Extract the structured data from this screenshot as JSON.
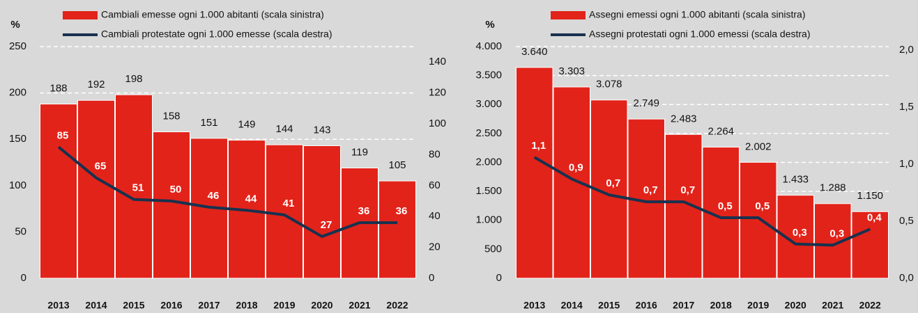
{
  "chart_data": [
    {
      "type": "bar",
      "y_label": "%",
      "categories": [
        "2013",
        "2014",
        "2015",
        "2016",
        "2017",
        "2018",
        "2019",
        "2020",
        "2021",
        "2022"
      ],
      "series": [
        {
          "name": "Cambiali emesse ogni 1.000 abitanti (scala sinistra)",
          "type": "bar",
          "color": "#e2231a",
          "values": [
            188,
            192,
            198,
            158,
            151,
            149,
            144,
            143,
            119,
            105
          ]
        },
        {
          "name": "Cambiali protestate ogni 1.000 emesse (scala destra)",
          "type": "line",
          "axis": "y2",
          "color": "#17324f",
          "values": [
            85,
            65,
            51,
            50,
            46,
            44,
            41,
            27,
            36,
            36
          ]
        }
      ],
      "ylim": [
        0,
        250
      ],
      "yticks": [
        0,
        50,
        100,
        150,
        200,
        250
      ],
      "y2lim": [
        0,
        150
      ],
      "y2ticks": [
        0,
        20,
        40,
        60,
        80,
        100,
        120,
        140
      ],
      "grid": true
    },
    {
      "type": "bar",
      "y_label": "%",
      "categories": [
        "2013",
        "2014",
        "2015",
        "2016",
        "2017",
        "2018",
        "2019",
        "2020",
        "2021",
        "2022"
      ],
      "series": [
        {
          "name": "Assegni emessi ogni 1.000 abitanti (scala sinistra)",
          "type": "bar",
          "color": "#e2231a",
          "values": [
            3640,
            3303,
            3078,
            2749,
            2483,
            2264,
            2002,
            1433,
            1288,
            1150
          ],
          "value_labels": [
            "3.640",
            "3.303",
            "3.078",
            "2.749",
            "2.483",
            "2.264",
            "2.002",
            "1.433",
            "1.288",
            "1.150"
          ]
        },
        {
          "name": "Assegni protestati ogni 1.000 emessi (scala destra)",
          "type": "line",
          "axis": "y2",
          "color": "#17324f",
          "values": [
            1.06,
            0.87,
            0.73,
            0.67,
            0.67,
            0.53,
            0.53,
            0.3,
            0.29,
            0.43
          ],
          "value_labels": [
            "1,1",
            "0,9",
            "0,7",
            "0,7",
            "0,7",
            "0,5",
            "0,5",
            "0,3",
            "0,3",
            "0,4"
          ]
        }
      ],
      "ylim": [
        0,
        4000
      ],
      "yticks": [
        0,
        500,
        {
          "value": 1000,
          "label": "1.000"
        },
        {
          "value": 1500,
          "label": "1.500"
        },
        {
          "value": 2000,
          "label": "2.000"
        },
        {
          "value": 2500,
          "label": "2.500"
        },
        {
          "value": 3000,
          "label": "3.000"
        },
        {
          "value": 3500,
          "label": "3.500"
        },
        {
          "value": 4000,
          "label": "4.000"
        }
      ],
      "y2lim": [
        0,
        2.03
      ],
      "y2ticks": [
        {
          "value": 0,
          "label": "0,0"
        },
        {
          "value": 0.5,
          "label": "0,5"
        },
        {
          "value": 1,
          "label": "1,0"
        },
        {
          "value": 1.5,
          "label": "1,5"
        },
        {
          "value": 2,
          "label": "2,0"
        }
      ],
      "grid": true
    }
  ]
}
